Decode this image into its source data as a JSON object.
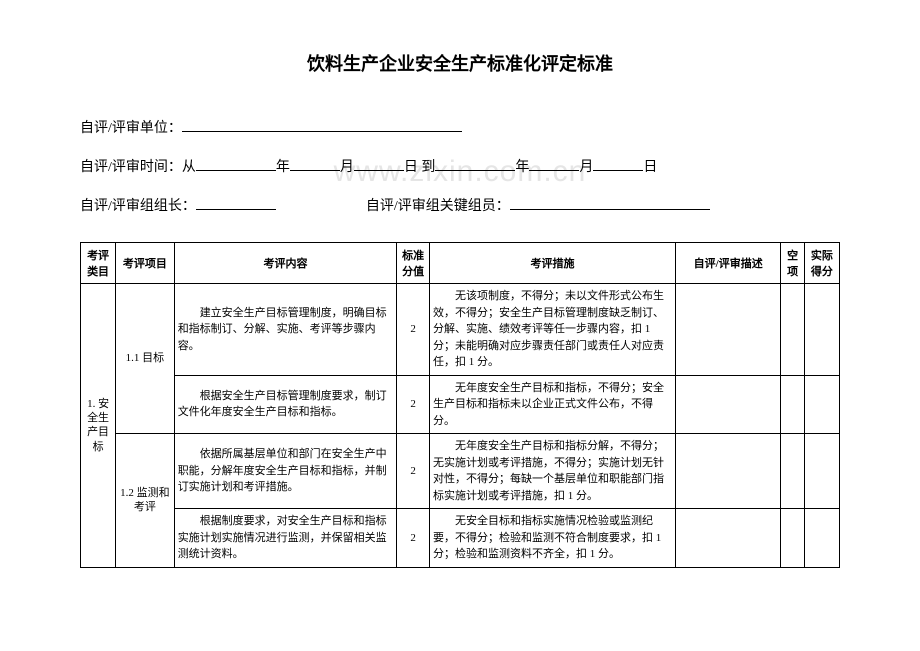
{
  "watermark": "www.zixin.com.cn",
  "title": "饮料生产企业安全生产标准化评定标准",
  "form": {
    "unit_label": "自评/评审单位：",
    "time_label": "自评/评审时间：从",
    "year": "年",
    "month": "月",
    "day": "日",
    "to": "到",
    "leader_label": "自评/评审组组长：",
    "member_label": "自评/评审组关键组员："
  },
  "headers": {
    "category": "考评类目",
    "item": "考评项目",
    "content": "考评内容",
    "standard_score": "标准分值",
    "measure": "考评措施",
    "desc": "自评/评审描述",
    "blank": "空项",
    "actual": "实际得分"
  },
  "category1": "1. 安全生产目标",
  "item11": "1.1 目标",
  "item12": "1.2 监测和考评",
  "rows": [
    {
      "content": "建立安全生产目标管理制度，明确目标和指标制订、分解、实施、考评等步骤内容。",
      "score": "2",
      "measure": "无该项制度，不得分；未以文件形式公布生效，不得分；安全生产目标管理制度缺乏制订、分解、实施、绩效考评等任一步骤内容，扣 1 分；未能明确对应步骤责任部门或责任人对应责任，扣 1 分。"
    },
    {
      "content": "根据安全生产目标管理制度要求，制订文件化年度安全生产目标和指标。",
      "score": "2",
      "measure": "无年度安全生产目标和指标，不得分；安全生产目标和指标未以企业正式文件公布，不得分。"
    },
    {
      "content": "依据所属基层单位和部门在安全生产中职能，分解年度安全生产目标和指标，并制订实施计划和考评措施。",
      "score": "2",
      "measure": "无年度安全生产目标和指标分解，不得分；无实施计划或考评措施，不得分；实施计划无针对性，不得分；每缺一个基层单位和职能部门指标实施计划或考评措施，扣 1 分。"
    },
    {
      "content": "根据制度要求，对安全生产目标和指标实施计划实施情况进行监测，并保留相关监测统计资料。",
      "score": "2",
      "measure": "无安全目标和指标实施情况检验或监测纪要，不得分；检验和监测不符合制度要求，扣 1 分；检验和监测资料不齐全，扣 1 分。"
    }
  ]
}
